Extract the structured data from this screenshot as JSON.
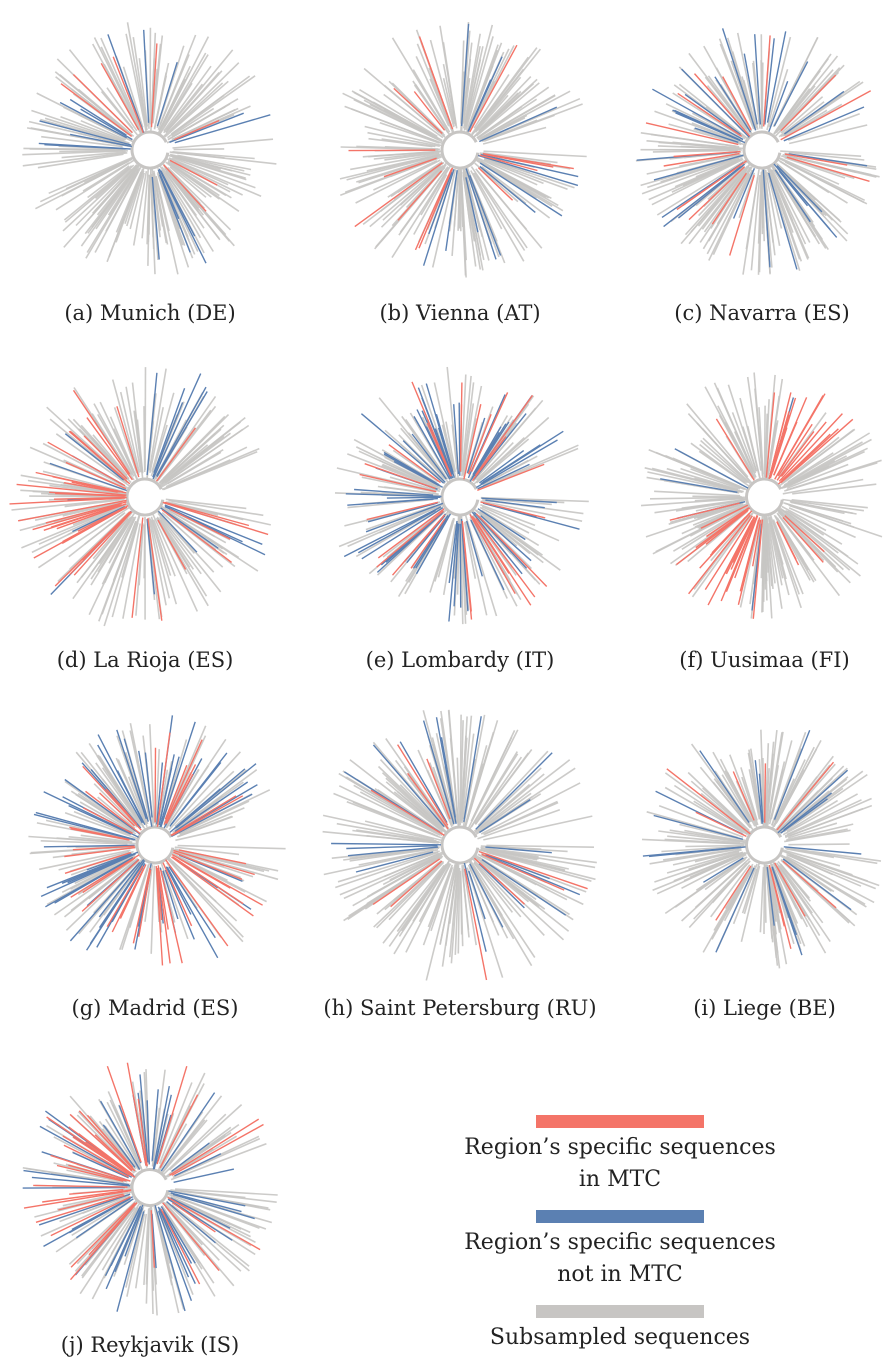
{
  "colors": {
    "in_mtc": "#f47468",
    "not_in_mtc": "#5b80b2",
    "subsampled": "#c7c5c3"
  },
  "panels": [
    {
      "id": "a",
      "caption": "(a) Munich (DE)",
      "red": 0.04,
      "blue": 0.08,
      "cluster": "scattered"
    },
    {
      "id": "b",
      "caption": "(b) Vienna (AT)",
      "red": 0.07,
      "blue": 0.07,
      "cluster": "scattered"
    },
    {
      "id": "c",
      "caption": "(c) Navarra (ES)",
      "red": 0.05,
      "blue": 0.1,
      "cluster": "scattered"
    },
    {
      "id": "d",
      "caption": "(d) La Rioja (ES)",
      "red": 0.1,
      "blue": 0.08,
      "cluster": "left"
    },
    {
      "id": "e",
      "caption": "(e) Lombardy (IT)",
      "red": 0.14,
      "blue": 0.28,
      "cluster": "scattered"
    },
    {
      "id": "f",
      "caption": "(f) Uusimaa (FI)",
      "red": 0.22,
      "blue": 0.04,
      "cluster": "topright-bottomleft"
    },
    {
      "id": "g",
      "caption": "(g) Madrid (ES)",
      "red": 0.18,
      "blue": 0.3,
      "cluster": "scattered"
    },
    {
      "id": "h",
      "caption": "(h) Saint Petersburg (RU)",
      "red": 0.03,
      "blue": 0.1,
      "cluster": "scattered"
    },
    {
      "id": "i",
      "caption": "(i) Liege (BE)",
      "red": 0.03,
      "blue": 0.1,
      "cluster": "scattered"
    },
    {
      "id": "j",
      "caption": "(j) Reykjavik (IS)",
      "red": 0.12,
      "blue": 0.2,
      "cluster": "left"
    }
  ],
  "legend": {
    "in_mtc_label": "Region’s specific sequences in MTC",
    "not_in_mtc_label": "Region’s specific sequences not in MTC",
    "subsampled_label": "Subsampled sequences"
  }
}
